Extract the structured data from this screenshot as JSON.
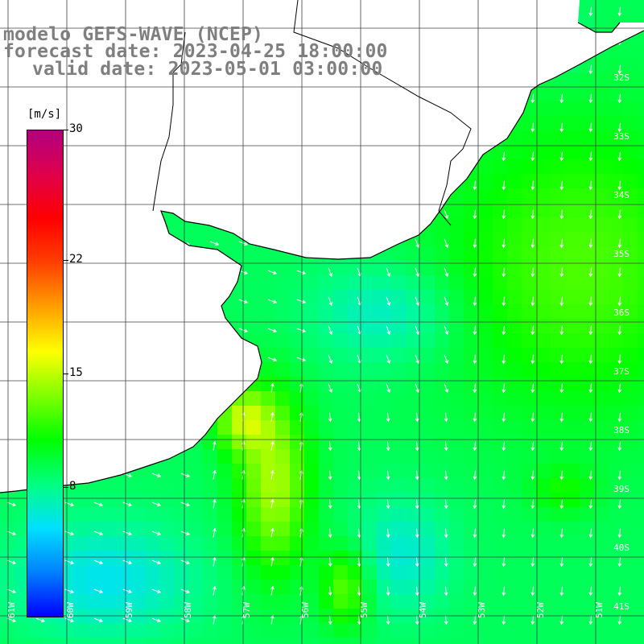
{
  "title": {
    "line1": "modelo GEFS-WAVE (NCEP)",
    "line2": "forecast date: 2023-04-25 18:00:00",
    "line3": "valid date: 2023-05-01 03:00:00"
  },
  "colorbar": {
    "unit": "[m/s]",
    "min": 0,
    "max": 30,
    "ticks": [
      "30",
      "22",
      "15",
      "8"
    ],
    "tick_values": [
      30,
      22,
      15,
      8
    ],
    "colors": [
      "#0000ff",
      "#0080ff",
      "#00e0ff",
      "#00ff80",
      "#00ff00",
      "#80ff00",
      "#ffff00",
      "#ffa000",
      "#ff4000",
      "#ff0000",
      "#e0004a",
      "#b00080"
    ]
  },
  "map": {
    "quantity": "wind speed",
    "arrow_color": "#ffffff",
    "land_color": "#ffffff",
    "grid_color": "#404040",
    "coast_color": "#000000",
    "lat_labels": [
      "32S",
      "33S",
      "34S",
      "35S",
      "36S",
      "37S",
      "38S",
      "39S",
      "40S",
      "41S"
    ],
    "lon_labels": [
      "61W",
      "60W",
      "59W",
      "58W",
      "57W",
      "56W",
      "55W",
      "54W",
      "53W",
      "52W",
      "51W"
    ]
  }
}
